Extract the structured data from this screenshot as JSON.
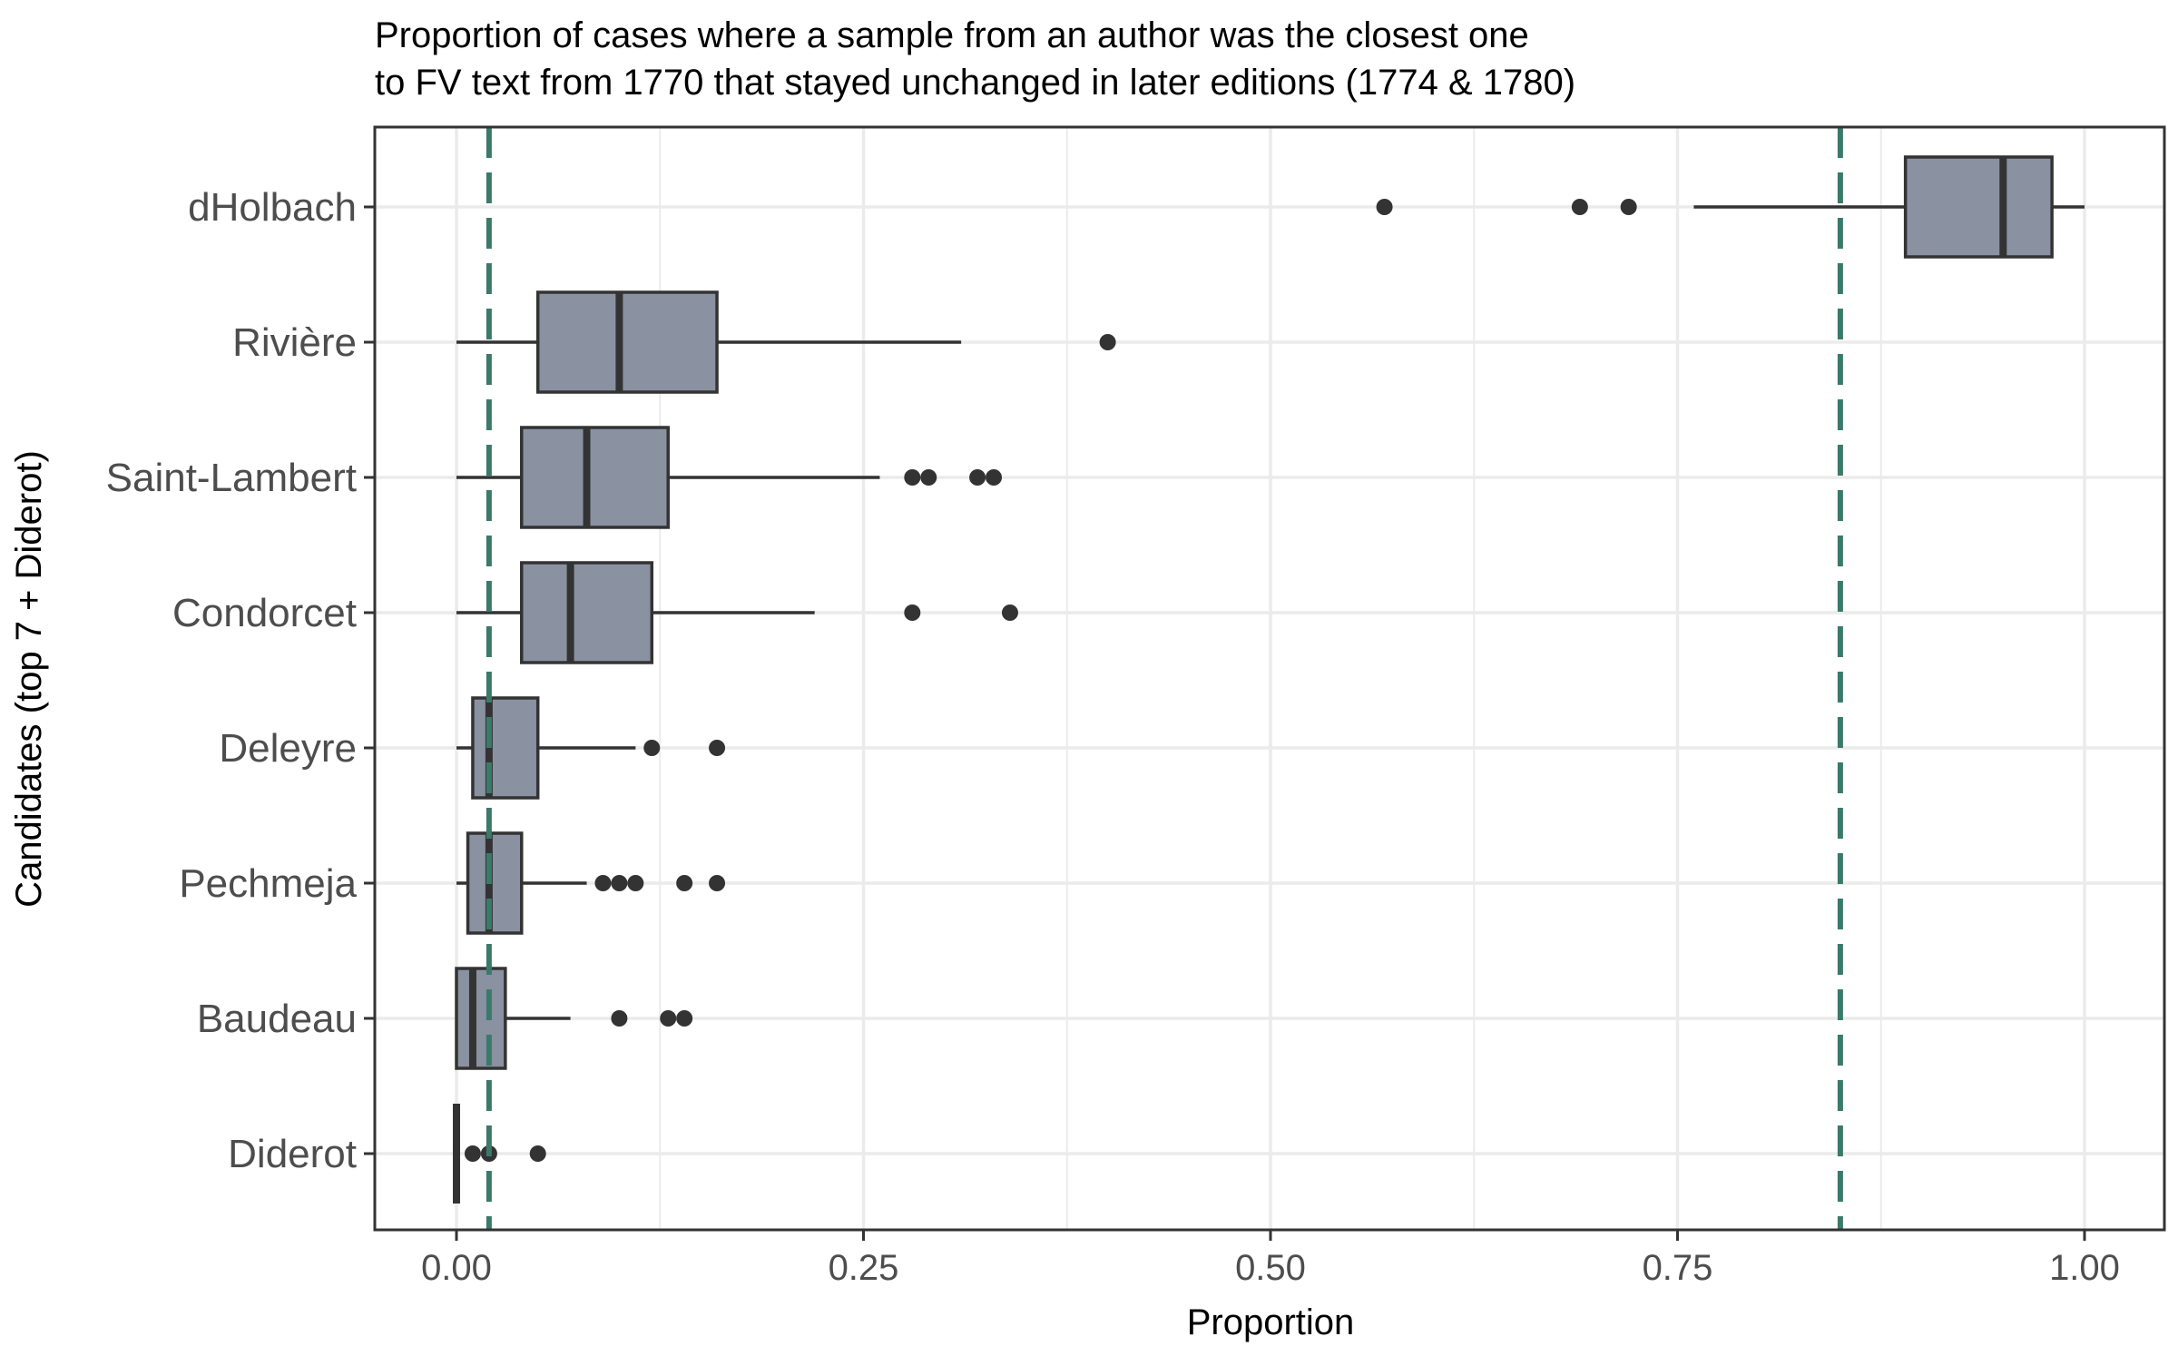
{
  "chart_data": {
    "type": "boxplot",
    "orientation": "horizontal",
    "title_lines": [
      "Proportion of cases where a sample from an author was the closest one",
      "to FV text from 1770 that stayed unchanged in later editions (1774 & 1780)"
    ],
    "xlabel": "Proportion",
    "ylabel": "Candidates (top 7 + Diderot)",
    "xlim": [
      -0.05,
      1.05
    ],
    "x_ticks": [
      {
        "value": 0.0,
        "label": "0.00"
      },
      {
        "value": 0.25,
        "label": "0.25"
      },
      {
        "value": 0.5,
        "label": "0.50"
      },
      {
        "value": 0.75,
        "label": "0.75"
      },
      {
        "value": 1.0,
        "label": "1.00"
      }
    ],
    "grid": true,
    "legend": "none",
    "colors": {
      "box_fill": "#8a91a1",
      "box_stroke": "#333333",
      "reference_line": "#3b7a6a",
      "grid": "#ebebeb",
      "panel_border": "#333333"
    },
    "categories": [
      {
        "name": "dHolbach",
        "whisker_low": 0.76,
        "q1": 0.89,
        "median": 0.95,
        "q3": 0.98,
        "whisker_high": 1.0,
        "outliers": [
          0.57,
          0.69,
          0.72
        ]
      },
      {
        "name": "Rivière",
        "whisker_low": 0.0,
        "q1": 0.05,
        "median": 0.1,
        "q3": 0.16,
        "whisker_high": 0.31,
        "outliers": [
          0.4
        ]
      },
      {
        "name": "Saint-Lambert",
        "whisker_low": 0.0,
        "q1": 0.04,
        "median": 0.08,
        "q3": 0.13,
        "whisker_high": 0.26,
        "outliers": [
          0.28,
          0.29,
          0.32,
          0.33
        ]
      },
      {
        "name": "Condorcet",
        "whisker_low": 0.0,
        "q1": 0.04,
        "median": 0.07,
        "q3": 0.12,
        "whisker_high": 0.22,
        "outliers": [
          0.28,
          0.34
        ]
      },
      {
        "name": "Deleyre",
        "whisker_low": 0.0,
        "q1": 0.01,
        "median": 0.02,
        "q3": 0.05,
        "whisker_high": 0.11,
        "outliers": [
          0.12,
          0.16
        ]
      },
      {
        "name": "Pechmeja",
        "whisker_low": 0.0,
        "q1": 0.007,
        "median": 0.02,
        "q3": 0.04,
        "whisker_high": 0.08,
        "outliers": [
          0.09,
          0.1,
          0.11,
          0.14,
          0.16
        ]
      },
      {
        "name": "Baudeau",
        "whisker_low": 0.0,
        "q1": 0.0,
        "median": 0.01,
        "q3": 0.03,
        "whisker_high": 0.07,
        "outliers": [
          0.1,
          0.13,
          0.14
        ]
      },
      {
        "name": "Diderot",
        "whisker_low": 0.0,
        "q1": 0.0,
        "median": 0.0,
        "q3": 0.0,
        "whisker_high": 0.0,
        "outliers": [
          0.01,
          0.02,
          0.05
        ]
      }
    ],
    "reference_lines": [
      {
        "value": 0.02,
        "style": "dashed"
      },
      {
        "value": 0.85,
        "style": "dashed"
      }
    ]
  }
}
